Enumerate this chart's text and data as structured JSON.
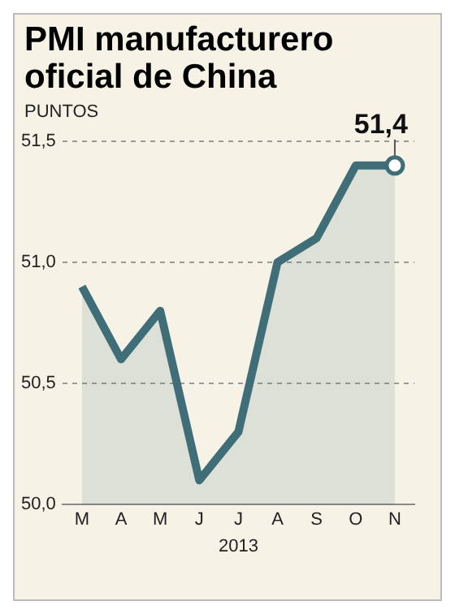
{
  "chart_data": {
    "type": "area",
    "title": "PMI manufacturero oficial de China",
    "ylabel": "PUNTOS",
    "xlabel": "2013",
    "categories": [
      "M",
      "A",
      "M",
      "J",
      "J",
      "A",
      "S",
      "O",
      "N"
    ],
    "series": [
      {
        "color": "#3f6e78",
        "values": [
          50.9,
          50.6,
          50.8,
          50.1,
          50.3,
          51.0,
          51.1,
          51.4,
          51.4
        ]
      }
    ],
    "ylim": [
      50,
      51.5
    ],
    "yticks": [
      {
        "value": 50,
        "label": "50,0"
      },
      {
        "value": 50.5,
        "label": "50,5"
      },
      {
        "value": 51,
        "label": "51,0"
      },
      {
        "value": 51.5,
        "label": "51,5"
      }
    ],
    "grid": "y",
    "line_style": "solid",
    "annotations": [
      {
        "text": "51,4",
        "x": "N",
        "y": 51.4
      }
    ]
  }
}
